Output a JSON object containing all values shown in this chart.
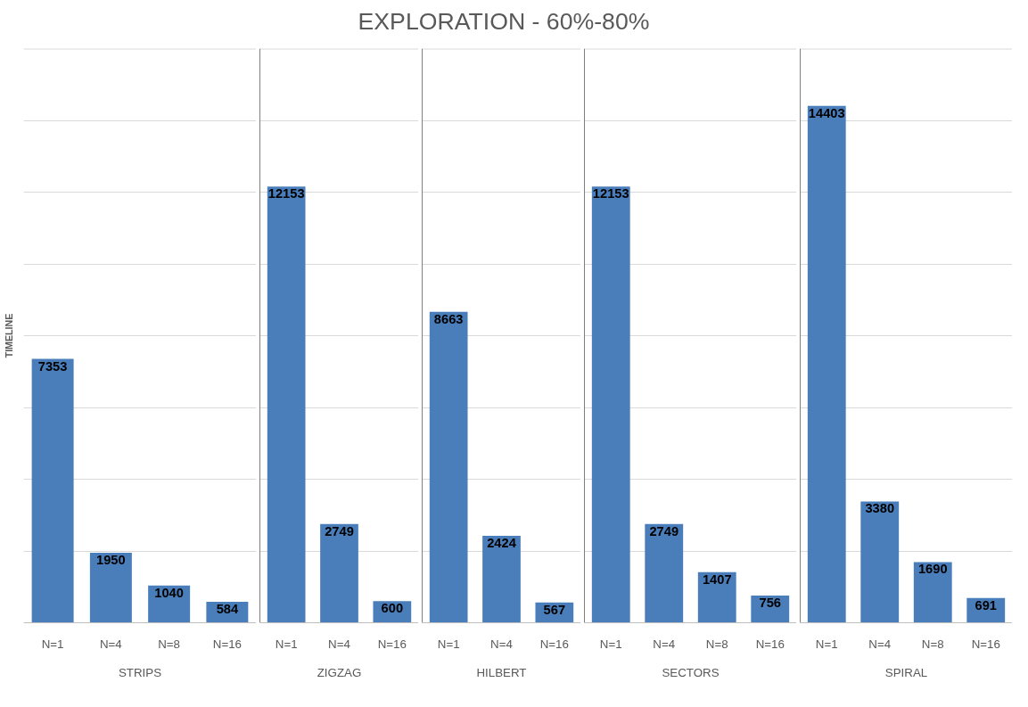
{
  "chart_data": [
    {
      "type": "other",
      "title": "EXPLORATION - 60%-80%"
    },
    {
      "type": "bar",
      "ylabel": "TIMELINE",
      "xlabel": "STRIPS",
      "categories": [
        "N=1",
        "N=4",
        "N=8",
        "N=16"
      ],
      "values": [
        7353,
        1950,
        1040,
        584
      ],
      "color": "#4a7ebb",
      "data_labels": true,
      "ylim": [
        0,
        16000
      ],
      "yticks": [
        {
          "value": 0,
          "label": null
        },
        {
          "value": 2000,
          "label": null
        },
        {
          "value": 4000,
          "label": null
        },
        {
          "value": 6000,
          "label": null
        },
        {
          "value": 8000,
          "label": null
        },
        {
          "value": 10000,
          "label": null
        },
        {
          "value": 12000,
          "label": null
        },
        {
          "value": 14000,
          "label": null
        },
        {
          "value": 16000,
          "label": null
        }
      ],
      "grid": "y",
      "tick_labels": "x"
    },
    {
      "type": "bar",
      "xlabel": "ZIGZAG",
      "categories": [
        "N=1",
        "N=4",
        "N=16"
      ],
      "values": [
        12153,
        2749,
        600
      ],
      "color": "#4a7ebb",
      "data_labels": true,
      "ylim": [
        0,
        16000
      ],
      "yticks": [
        {
          "value": 0,
          "label": null
        },
        {
          "value": 2000,
          "label": null
        },
        {
          "value": 4000,
          "label": null
        },
        {
          "value": 6000,
          "label": null
        },
        {
          "value": 8000,
          "label": null
        },
        {
          "value": 10000,
          "label": null
        },
        {
          "value": 12000,
          "label": null
        },
        {
          "value": 14000,
          "label": null
        },
        {
          "value": 16000,
          "label": null
        }
      ],
      "grid": "y",
      "tick_labels": "x"
    },
    {
      "type": "bar",
      "xlabel": "HILBERT",
      "categories": [
        "N=1",
        "N=4",
        "N=16"
      ],
      "values": [
        8663,
        2424,
        567
      ],
      "color": "#4a7ebb",
      "data_labels": true,
      "ylim": [
        0,
        16000
      ],
      "yticks": [
        {
          "value": 0,
          "label": null
        },
        {
          "value": 2000,
          "label": null
        },
        {
          "value": 4000,
          "label": null
        },
        {
          "value": 6000,
          "label": null
        },
        {
          "value": 8000,
          "label": null
        },
        {
          "value": 10000,
          "label": null
        },
        {
          "value": 12000,
          "label": null
        },
        {
          "value": 14000,
          "label": null
        },
        {
          "value": 16000,
          "label": null
        }
      ],
      "grid": "y",
      "tick_labels": "x"
    },
    {
      "type": "bar",
      "xlabel": "SECTORS",
      "categories": [
        "N=1",
        "N=4",
        "N=8",
        "N=16"
      ],
      "values": [
        12153,
        2749,
        1407,
        756
      ],
      "color": "#4a7ebb",
      "data_labels": true,
      "ylim": [
        0,
        16000
      ],
      "yticks": [
        {
          "value": 0,
          "label": null
        },
        {
          "value": 2000,
          "label": null
        },
        {
          "value": 4000,
          "label": null
        },
        {
          "value": 6000,
          "label": null
        },
        {
          "value": 8000,
          "label": null
        },
        {
          "value": 10000,
          "label": null
        },
        {
          "value": 12000,
          "label": null
        },
        {
          "value": 14000,
          "label": null
        },
        {
          "value": 16000,
          "label": null
        }
      ],
      "grid": "y",
      "tick_labels": "x"
    },
    {
      "type": "bar",
      "xlabel": "SPIRAL",
      "categories": [
        "N=1",
        "N=4",
        "N=8",
        "N=16"
      ],
      "values": [
        14403,
        3380,
        1690,
        691
      ],
      "color": "#4a7ebb",
      "data_labels": true,
      "ylim": [
        0,
        16000
      ],
      "yticks": [
        {
          "value": 0,
          "label": null
        },
        {
          "value": 2000,
          "label": null
        },
        {
          "value": 4000,
          "label": null
        },
        {
          "value": 6000,
          "label": null
        },
        {
          "value": 8000,
          "label": null
        },
        {
          "value": 10000,
          "label": null
        },
        {
          "value": 12000,
          "label": null
        },
        {
          "value": 14000,
          "label": null
        },
        {
          "value": 16000,
          "label": null
        }
      ],
      "grid": "y",
      "tick_labels": "x"
    }
  ]
}
